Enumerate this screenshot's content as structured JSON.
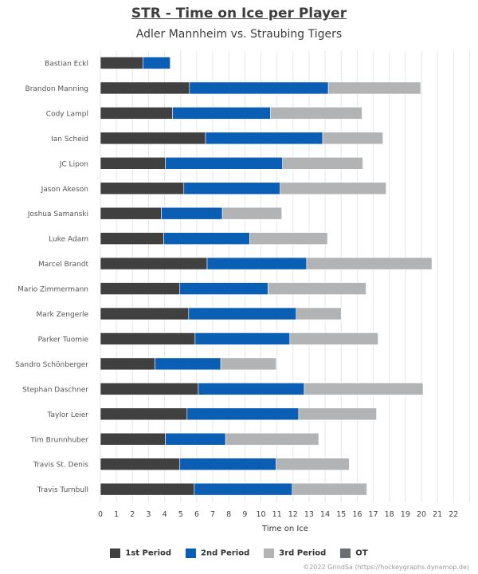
{
  "chart_data": {
    "type": "bar",
    "orientation": "horizontal",
    "stacked": true,
    "title": "STR - Time on Ice per Player",
    "subtitle": "Adler Mannheim vs. Straubing Tigers",
    "xlabel": "Time on Ice",
    "ylabel": "",
    "xlim": [
      0,
      23
    ],
    "xticks": [
      0,
      1,
      2,
      3,
      4,
      5,
      6,
      7,
      8,
      9,
      10,
      11,
      12,
      13,
      14,
      15,
      16,
      17,
      18,
      19,
      20,
      21,
      22
    ],
    "grid": "vertical",
    "legend_position": "bottom",
    "categories": [
      "Bastian Eckl",
      "Brandon Manning",
      "Cody Lampl",
      "Ian Scheid",
      "JC Lipon",
      "Jason Akeson",
      "Joshua Samanski",
      "Luke Adam",
      "Marcel Brandt",
      "Mario Zimmermann",
      "Mark Zengerle",
      "Parker Tuomie",
      "Sandro Schönberger",
      "Stephan Daschner",
      "Taylor Leier",
      "Tim Brunnhuber",
      "Travis St. Denis",
      "Travis Turnbull"
    ],
    "series": [
      {
        "name": "1st Period",
        "color": "#404040",
        "values": [
          2.65,
          5.55,
          4.5,
          6.55,
          4.05,
          5.2,
          3.8,
          3.95,
          6.65,
          4.95,
          5.5,
          5.9,
          3.4,
          6.1,
          5.4,
          4.05,
          4.95,
          5.85
        ]
      },
      {
        "name": "2nd Period",
        "color": "#0a5eb4",
        "values": [
          1.7,
          8.65,
          6.1,
          7.3,
          7.3,
          6.0,
          3.8,
          5.35,
          6.2,
          5.5,
          6.7,
          5.9,
          4.1,
          6.6,
          6.95,
          3.75,
          6.0,
          6.1
        ]
      },
      {
        "name": "3rd Period",
        "color": "#b1b3b5",
        "values": [
          0,
          5.75,
          5.7,
          3.75,
          5.0,
          6.6,
          3.7,
          4.85,
          7.8,
          6.1,
          2.8,
          5.5,
          3.45,
          7.4,
          4.85,
          5.8,
          4.55,
          4.65
        ]
      },
      {
        "name": "OT",
        "color": "#6b6e73",
        "values": [
          0,
          0,
          0,
          0,
          0,
          0,
          0,
          0,
          0,
          0,
          0,
          0,
          0,
          0,
          0,
          0,
          0,
          0
        ]
      }
    ]
  },
  "credit": "©2022 GrindSa (https://hockeygraphs.dynamop.de)"
}
